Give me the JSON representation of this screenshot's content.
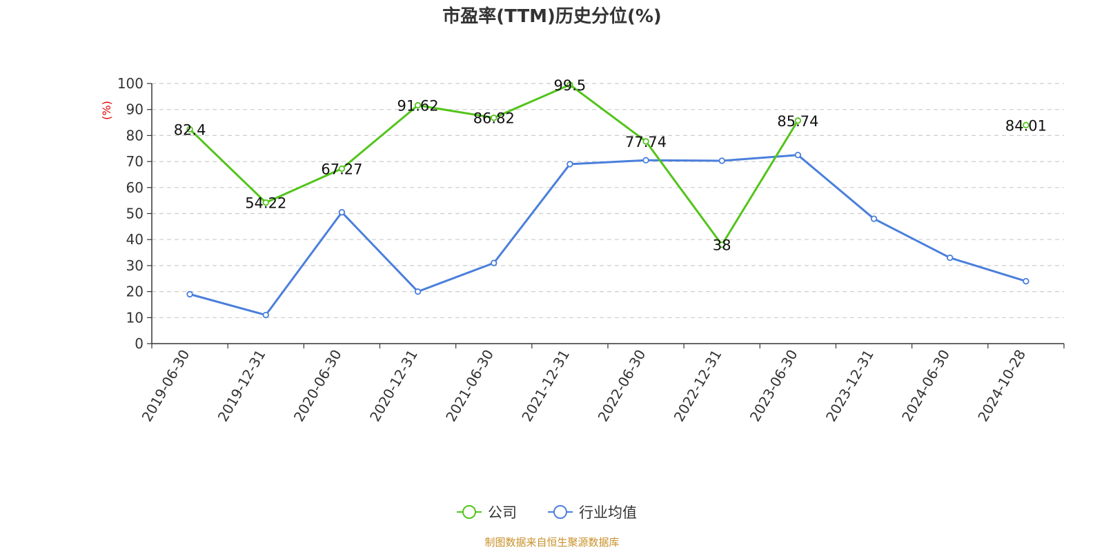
{
  "chart_data": {
    "type": "line",
    "title": "市盈率(TTM)历史分位(%)",
    "ylabel": "(%)",
    "ylim": [
      0,
      100
    ],
    "yticks": [
      0,
      10,
      20,
      30,
      40,
      50,
      60,
      70,
      80,
      90,
      100
    ],
    "grid": true,
    "legend_position": "bottom-center",
    "categories": [
      "2019-06-30",
      "2019-12-31",
      "2020-06-30",
      "2020-12-31",
      "2021-06-30",
      "2021-12-31",
      "2022-06-30",
      "2022-12-31",
      "2023-06-30",
      "2023-12-31",
      "2024-06-30",
      "2024-10-28"
    ],
    "series": [
      {
        "name": "公司",
        "color": "#52c41a",
        "values": [
          82.4,
          54.22,
          67.27,
          91.62,
          86.82,
          99.5,
          77.74,
          38,
          85.74,
          null,
          null,
          84.01
        ],
        "labels": [
          "82.4",
          "54.22",
          "67.27",
          "91.62",
          "86.82",
          "99.5",
          "77.74",
          "38",
          "85.74",
          "",
          "",
          "84.01"
        ]
      },
      {
        "name": "行业均值",
        "color": "#4a7fdc",
        "values": [
          19,
          11,
          50.5,
          20,
          31,
          69,
          70.5,
          70.3,
          72.5,
          48,
          33,
          24
        ],
        "labels": []
      }
    ],
    "source_note": "制图数据来自恒生聚源数据库"
  }
}
